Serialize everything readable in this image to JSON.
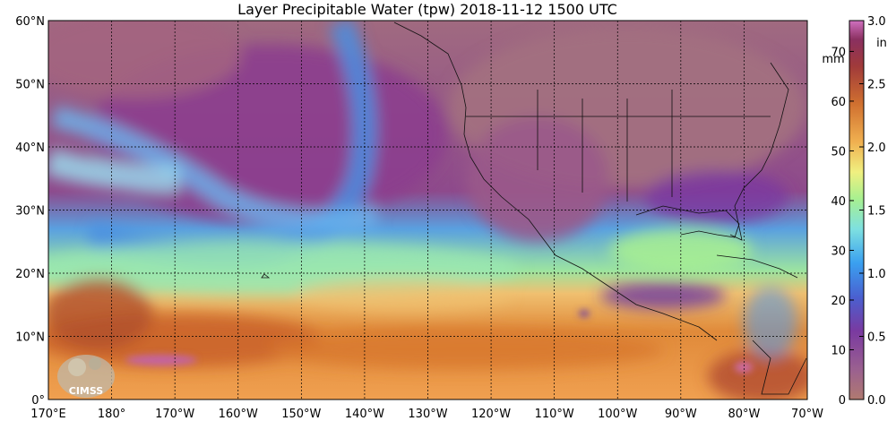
{
  "map": {
    "title": "Layer Precipitable Water (tpw)  2018-11-12 1500 UTC",
    "lat_labels": [
      "60°N",
      "50°N",
      "40°N",
      "30°N",
      "20°N",
      "10°N",
      "0°"
    ],
    "lat_values": [
      60,
      50,
      40,
      30,
      20,
      10,
      0
    ],
    "lon_labels": [
      "170°E",
      "180°",
      "170°W",
      "160°W",
      "150°W",
      "140°W",
      "130°W",
      "120°W",
      "110°W",
      "100°W",
      "90°W",
      "80°W",
      "70°W"
    ],
    "lon_values": [
      170,
      180,
      190,
      200,
      210,
      220,
      230,
      240,
      250,
      260,
      270,
      280,
      290
    ],
    "extent": {
      "lon_min": 170,
      "lon_max": 290,
      "lat_min": 0,
      "lat_max": 60
    },
    "logo_text": "CIMSS",
    "colors": {
      "dry": "#a06a78",
      "magenta": "#8a3f8f",
      "violet": "#6a4fb0",
      "blue": "#4a9ae0",
      "cyan": "#7fd6f0",
      "green": "#a8e890",
      "yellow": "#f0d070",
      "orange": "#e08a3a",
      "brown": "#b8502a"
    }
  },
  "colorbar": {
    "mm_unit": "mm",
    "in_unit": "in",
    "mm_ticks": [
      {
        "v": 0,
        "t": "0"
      },
      {
        "v": 10,
        "t": "10"
      },
      {
        "v": 20,
        "t": "20"
      },
      {
        "v": 30,
        "t": "30"
      },
      {
        "v": 40,
        "t": "40"
      },
      {
        "v": 50,
        "t": "50"
      },
      {
        "v": 60,
        "t": "60"
      },
      {
        "v": 70,
        "t": "70"
      }
    ],
    "in_ticks": [
      {
        "v": 0.0,
        "t": "0.0"
      },
      {
        "v": 0.5,
        "t": "0.5"
      },
      {
        "v": 1.0,
        "t": "1.0"
      },
      {
        "v": 1.5,
        "t": "1.5"
      },
      {
        "v": 2.0,
        "t": "2.0"
      },
      {
        "v": 2.5,
        "t": "2.5"
      },
      {
        "v": 3.0,
        "t": "3.0"
      }
    ],
    "mm_max": 76.2,
    "in_max": 3.0
  }
}
